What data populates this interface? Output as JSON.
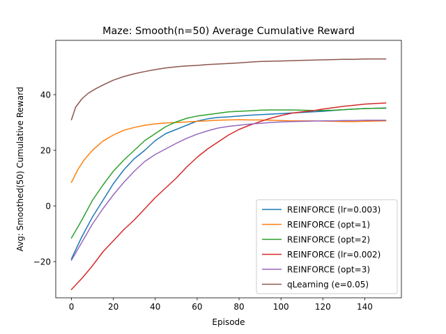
{
  "chart_data": {
    "type": "line",
    "title": "Maze: Smooth(n=50) Average Cumulative Reward",
    "xlabel": "Episode",
    "ylabel": "Avg: Smoothed(50) Cumulative Reward",
    "xlim": [
      -7.5,
      157.5
    ],
    "ylim": [
      -33,
      59.5
    ],
    "xticks": [
      0,
      20,
      40,
      60,
      80,
      100,
      120,
      140
    ],
    "yticks": [
      -20,
      0,
      20,
      40
    ],
    "legend_position": "lower-right",
    "grid": false,
    "series": [
      {
        "name": "REINFORCE (lr=0.003)",
        "color": "#1f77b4",
        "points": [
          [
            0,
            -19
          ],
          [
            5,
            -11
          ],
          [
            10,
            -4
          ],
          [
            15,
            2
          ],
          [
            20,
            8
          ],
          [
            25,
            13
          ],
          [
            30,
            17
          ],
          [
            35,
            20
          ],
          [
            40,
            23.5
          ],
          [
            45,
            26
          ],
          [
            50,
            27.5
          ],
          [
            55,
            29
          ],
          [
            60,
            30.5
          ],
          [
            65,
            31.3
          ],
          [
            70,
            31.8
          ],
          [
            75,
            32
          ],
          [
            80,
            32.3
          ],
          [
            85,
            32.6
          ],
          [
            90,
            32.8
          ],
          [
            95,
            33
          ],
          [
            100,
            33.2
          ],
          [
            105,
            33.4
          ],
          [
            110,
            33.6
          ],
          [
            115,
            33.8
          ],
          [
            120,
            34
          ],
          [
            125,
            34.3
          ],
          [
            130,
            34.6
          ],
          [
            135,
            34.8
          ],
          [
            140,
            35
          ],
          [
            145,
            35.1
          ],
          [
            150,
            35.2
          ]
        ]
      },
      {
        "name": "REINFORCE (opt=1)",
        "color": "#ff7f0e",
        "points": [
          [
            0,
            8.5
          ],
          [
            3,
            13
          ],
          [
            6,
            16.5
          ],
          [
            10,
            20
          ],
          [
            15,
            23.3
          ],
          [
            20,
            25.5
          ],
          [
            25,
            27.2
          ],
          [
            30,
            28.2
          ],
          [
            35,
            29
          ],
          [
            40,
            29.5
          ],
          [
            45,
            29.8
          ],
          [
            50,
            30
          ],
          [
            55,
            30.2
          ],
          [
            60,
            30.4
          ],
          [
            65,
            30.6
          ],
          [
            70,
            30.8
          ],
          [
            75,
            30.9
          ],
          [
            80,
            31
          ],
          [
            85,
            30.9
          ],
          [
            90,
            30.9
          ],
          [
            95,
            30.8
          ],
          [
            100,
            30.7
          ],
          [
            105,
            30.6
          ],
          [
            110,
            30.6
          ],
          [
            115,
            30.6
          ],
          [
            120,
            30.5
          ],
          [
            125,
            30.4
          ],
          [
            130,
            30.3
          ],
          [
            135,
            30.3
          ],
          [
            140,
            30.4
          ],
          [
            145,
            30.5
          ],
          [
            150,
            30.6
          ]
        ]
      },
      {
        "name": "REINFORCE (opt=2)",
        "color": "#2ca02c",
        "points": [
          [
            0,
            -11.5
          ],
          [
            5,
            -5
          ],
          [
            10,
            2
          ],
          [
            15,
            7.5
          ],
          [
            20,
            12.5
          ],
          [
            25,
            16.5
          ],
          [
            30,
            20
          ],
          [
            35,
            23.5
          ],
          [
            40,
            26
          ],
          [
            45,
            28.5
          ],
          [
            50,
            30.2
          ],
          [
            55,
            31.5
          ],
          [
            60,
            32.3
          ],
          [
            65,
            32.8
          ],
          [
            70,
            33.3
          ],
          [
            75,
            33.8
          ],
          [
            80,
            34
          ],
          [
            85,
            34.2
          ],
          [
            90,
            34.4
          ],
          [
            95,
            34.5
          ],
          [
            100,
            34.5
          ],
          [
            105,
            34.5
          ],
          [
            110,
            34.4
          ],
          [
            115,
            34.3
          ],
          [
            120,
            34.3
          ],
          [
            125,
            34.4
          ],
          [
            130,
            34.6
          ],
          [
            135,
            34.8
          ],
          [
            140,
            35
          ],
          [
            145,
            35.1
          ],
          [
            150,
            35.1
          ]
        ]
      },
      {
        "name": "REINFORCE (lr=0.002)",
        "color": "#d62728",
        "points": [
          [
            0,
            -30
          ],
          [
            5,
            -26
          ],
          [
            10,
            -21.5
          ],
          [
            15,
            -16.5
          ],
          [
            20,
            -12.5
          ],
          [
            25,
            -8.5
          ],
          [
            30,
            -5
          ],
          [
            35,
            -1
          ],
          [
            40,
            3
          ],
          [
            45,
            6.5
          ],
          [
            50,
            10
          ],
          [
            55,
            14
          ],
          [
            60,
            17.5
          ],
          [
            65,
            20.5
          ],
          [
            70,
            23
          ],
          [
            75,
            25.5
          ],
          [
            80,
            27.5
          ],
          [
            85,
            29
          ],
          [
            90,
            30.3
          ],
          [
            95,
            31.5
          ],
          [
            100,
            32.5
          ],
          [
            105,
            33.3
          ],
          [
            110,
            33.8
          ],
          [
            115,
            34.2
          ],
          [
            120,
            34.8
          ],
          [
            125,
            35.3
          ],
          [
            130,
            35.8
          ],
          [
            135,
            36.2
          ],
          [
            140,
            36.6
          ],
          [
            145,
            36.8
          ],
          [
            150,
            37
          ]
        ]
      },
      {
        "name": "REINFORCE (opt=3)",
        "color": "#9467bd",
        "points": [
          [
            0,
            -19.5
          ],
          [
            5,
            -13
          ],
          [
            10,
            -6.5
          ],
          [
            15,
            -1
          ],
          [
            20,
            4
          ],
          [
            25,
            8.5
          ],
          [
            30,
            12.5
          ],
          [
            35,
            16
          ],
          [
            40,
            18.5
          ],
          [
            45,
            20.5
          ],
          [
            50,
            22.5
          ],
          [
            55,
            24.3
          ],
          [
            60,
            25.8
          ],
          [
            65,
            27
          ],
          [
            70,
            28
          ],
          [
            75,
            28.6
          ],
          [
            80,
            29
          ],
          [
            85,
            29.4
          ],
          [
            90,
            29.7
          ],
          [
            95,
            30
          ],
          [
            100,
            30.2
          ],
          [
            105,
            30.3
          ],
          [
            110,
            30.4
          ],
          [
            115,
            30.5
          ],
          [
            120,
            30.6
          ],
          [
            125,
            30.6
          ],
          [
            130,
            30.7
          ],
          [
            135,
            30.7
          ],
          [
            140,
            30.8
          ],
          [
            145,
            30.8
          ],
          [
            150,
            30.8
          ]
        ]
      },
      {
        "name": "qLearning (e=0.05)",
        "color": "#8c564b",
        "points": [
          [
            0,
            31
          ],
          [
            2,
            35.5
          ],
          [
            5,
            38.5
          ],
          [
            8,
            40.5
          ],
          [
            12,
            42.3
          ],
          [
            16,
            43.8
          ],
          [
            20,
            45.2
          ],
          [
            25,
            46.5
          ],
          [
            30,
            47.5
          ],
          [
            35,
            48.3
          ],
          [
            40,
            49
          ],
          [
            45,
            49.6
          ],
          [
            50,
            50
          ],
          [
            55,
            50.3
          ],
          [
            60,
            50.5
          ],
          [
            65,
            50.8
          ],
          [
            70,
            51
          ],
          [
            75,
            51.2
          ],
          [
            80,
            51.4
          ],
          [
            85,
            51.7
          ],
          [
            90,
            51.9
          ],
          [
            95,
            52
          ],
          [
            100,
            52.1
          ],
          [
            105,
            52.2
          ],
          [
            110,
            52.3
          ],
          [
            115,
            52.4
          ],
          [
            120,
            52.5
          ],
          [
            125,
            52.6
          ],
          [
            130,
            52.7
          ],
          [
            135,
            52.7
          ],
          [
            140,
            52.8
          ],
          [
            145,
            52.8
          ],
          [
            150,
            52.8
          ]
        ]
      }
    ]
  }
}
